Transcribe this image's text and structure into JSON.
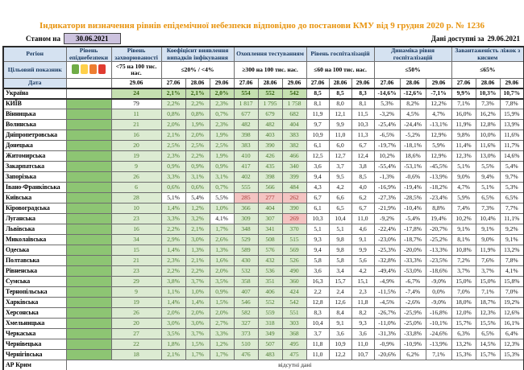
{
  "header": {
    "title": "Індикатори визначення рівнів епідемічної небезпеки відповідно до постанови КМУ від 9 грудня 2020 р. № 1236",
    "as_of_label": "Станом на",
    "as_of_date": "30.06.2021",
    "available_label": "Дані доступні за",
    "available_date": "29.06.2021"
  },
  "colors": {
    "title_accent": "#E8940F",
    "header_fill": "#D5E2F1",
    "level_green": "#8DC573",
    "cell_green": "#DCEBD2",
    "cell_green_bold": "#C5E0B0",
    "cell_pink": "#F4C4C2",
    "green_text": "#48772C",
    "red_text": "#A63632",
    "asof_box_fill": "#CCC2DE"
  },
  "table": {
    "corner": {
      "row1": "Регіон",
      "row2": "Цільовий показник",
      "row3": "Дата"
    },
    "level_col": {
      "title": "Рівень епіднебезпеки",
      "legend_colors": [
        "#6FAC46",
        "#FFD04A",
        "#ED7D31",
        "#E03C31"
      ],
      "legend_names": [
        "green-level-square",
        "yellow-level-square",
        "orange-level-square",
        "red-level-square"
      ]
    },
    "groups": [
      {
        "key": "sick",
        "cols": 1,
        "shaded": true,
        "title": "Рівень захворюваності",
        "target": "<75 на 100 тис. нас.",
        "dates": [
          "29.06"
        ]
      },
      {
        "key": "coef",
        "cols": 3,
        "shaded": true,
        "title": "Коефіцієнт виявлення випадків інфікування",
        "target": "≤20% / <4%",
        "dates": [
          "27.06",
          "28.06",
          "29.06"
        ]
      },
      {
        "key": "test",
        "cols": 3,
        "shaded": true,
        "title": "Охоплення тестуванням",
        "target": "≥300 на 100 тис. нас.",
        "dates": [
          "27.06",
          "28.06",
          "29.06"
        ]
      },
      {
        "key": "hosp",
        "cols": 3,
        "shaded": false,
        "title": "Рівень госпіталізацій",
        "target": "≤60 на 100 тис. нас.",
        "dates": [
          "27.06",
          "28.06",
          "29.06"
        ]
      },
      {
        "key": "dyn",
        "cols": 3,
        "shaded": false,
        "title": "Динаміка рівня госпіталізацій",
        "target": "≤50%",
        "dates": [
          "27.06",
          "28.06",
          "29.06"
        ]
      },
      {
        "key": "beds",
        "cols": 3,
        "shaded": false,
        "title": "Завантаженість ліжок з киснем",
        "target": "≤65%",
        "dates": [
          "27.06",
          "28.06",
          "29.06"
        ]
      }
    ],
    "no_data_text": "відсутні дані",
    "rows": [
      {
        "name": "Україна",
        "style": "ukraine",
        "level": "",
        "sick": [
          "24"
        ],
        "coef": [
          "2,1%",
          "2,1%",
          "2,0%"
        ],
        "test": [
          "554",
          "552",
          "542"
        ],
        "hosp": [
          "8,5",
          "8,5",
          "8,3"
        ],
        "dyn": [
          "-14,6%",
          "-12,6%",
          "-7,1%"
        ],
        "beds": [
          "9,9%",
          "10,3%",
          "10,7%"
        ]
      },
      {
        "name": "КИЇВ",
        "level": "green",
        "sick": [
          "w:79"
        ],
        "coef": [
          "2,2%",
          "2,2%",
          "2,3%"
        ],
        "test": [
          "1 817",
          "1 795",
          "1 758"
        ],
        "hosp": [
          "8,1",
          "8,0",
          "8,1"
        ],
        "dyn": [
          "5,3%",
          "8,2%",
          "12,2%"
        ],
        "beds": [
          "7,1%",
          "7,3%",
          "7,8%"
        ]
      },
      {
        "name": "Вінницька",
        "level": "green",
        "sick": [
          "11"
        ],
        "coef": [
          "0,8%",
          "0,8%",
          "0,7%"
        ],
        "test": [
          "677",
          "679",
          "682"
        ],
        "hosp": [
          "11,9",
          "12,1",
          "11,5"
        ],
        "dyn": [
          "-3,2%",
          "4,5%",
          "4,7%"
        ],
        "beds": [
          "16,0%",
          "16,2%",
          "15,9%"
        ]
      },
      {
        "name": "Волинська",
        "level": "green",
        "sick": [
          "21"
        ],
        "coef": [
          "2,0%",
          "1,9%",
          "2,3%"
        ],
        "test": [
          "482",
          "482",
          "404"
        ],
        "hosp": [
          "9,7",
          "9,9",
          "10,3"
        ],
        "dyn": [
          "-25,4%",
          "-24,4%",
          "-13,1%"
        ],
        "beds": [
          "11,9%",
          "12,8%",
          "13,9%"
        ]
      },
      {
        "name": "Дніпропетровська",
        "level": "green",
        "sick": [
          "16"
        ],
        "coef": [
          "2,1%",
          "2,0%",
          "1,9%"
        ],
        "test": [
          "398",
          "403",
          "383"
        ],
        "hosp": [
          "10,9",
          "11,0",
          "11,3"
        ],
        "dyn": [
          "-6,5%",
          "-5,2%",
          "12,9%"
        ],
        "beds": [
          "9,8%",
          "10,0%",
          "11,6%"
        ]
      },
      {
        "name": "Донецька",
        "level": "green",
        "sick": [
          "20"
        ],
        "coef": [
          "2,5%",
          "2,5%",
          "2,5%"
        ],
        "test": [
          "383",
          "390",
          "382"
        ],
        "hosp": [
          "6,1",
          "6,0",
          "6,7"
        ],
        "dyn": [
          "-19,7%",
          "-18,1%",
          "5,9%"
        ],
        "beds": [
          "11,4%",
          "11,6%",
          "11,7%"
        ]
      },
      {
        "name": "Житомирська",
        "level": "green",
        "sick": [
          "19"
        ],
        "coef": [
          "2,3%",
          "2,2%",
          "1,9%"
        ],
        "test": [
          "410",
          "426",
          "466"
        ],
        "hosp": [
          "12,5",
          "12,7",
          "12,4"
        ],
        "dyn": [
          "10,2%",
          "18,6%",
          "12,9%"
        ],
        "beds": [
          "12,3%",
          "13,0%",
          "14,6%"
        ]
      },
      {
        "name": "Закарпатська",
        "level": "green",
        "sick": [
          "9"
        ],
        "coef": [
          "0,9%",
          "0,9%",
          "0,9%"
        ],
        "test": [
          "417",
          "435",
          "340"
        ],
        "hosp": [
          "3,6",
          "3,7",
          "3,8"
        ],
        "dyn": [
          "-55,4%",
          "-53,1%",
          "-45,5%"
        ],
        "beds": [
          "5,1%",
          "5,5%",
          "5,4%"
        ]
      },
      {
        "name": "Запорізька",
        "level": "green",
        "sick": [
          "26"
        ],
        "coef": [
          "3,3%",
          "3,1%",
          "3,1%"
        ],
        "test": [
          "402",
          "398",
          "399"
        ],
        "hosp": [
          "9,4",
          "9,5",
          "8,5"
        ],
        "dyn": [
          "-1,3%",
          "-0,6%",
          "-13,9%"
        ],
        "beds": [
          "9,0%",
          "9,4%",
          "9,7%"
        ]
      },
      {
        "name": "Івано-Франківська",
        "level": "green",
        "sick": [
          "6"
        ],
        "coef": [
          "0,6%",
          "0,6%",
          "0,7%"
        ],
        "test": [
          "555",
          "566",
          "484"
        ],
        "hosp": [
          "4,3",
          "4,2",
          "4,0"
        ],
        "dyn": [
          "-16,9%",
          "-19,4%",
          "-18,2%"
        ],
        "beds": [
          "4,7%",
          "5,1%",
          "5,3%"
        ]
      },
      {
        "name": "Київська",
        "level": "green",
        "sick": [
          "28"
        ],
        "coef": [
          "w:5,1%",
          "w:5,4%",
          "w:5,5%"
        ],
        "test": [
          "p:285",
          "p:277",
          "p:262"
        ],
        "hosp": [
          "6,7",
          "6,6",
          "6,2"
        ],
        "dyn": [
          "-27,3%",
          "-28,5%",
          "-23,4%"
        ],
        "beds": [
          "5,9%",
          "6,5%",
          "6,5%"
        ]
      },
      {
        "name": "Кіровоградська",
        "level": "green",
        "sick": [
          "10"
        ],
        "coef": [
          "1,4%",
          "1,2%",
          "1,0%"
        ],
        "test": [
          "366",
          "404",
          "390"
        ],
        "hosp": [
          "6,1",
          "6,5",
          "6,7"
        ],
        "dyn": [
          "-21,9%",
          "-10,4%",
          "8,8%"
        ],
        "beds": [
          "7,4%",
          "7,3%",
          "7,7%"
        ]
      },
      {
        "name": "Луганська",
        "level": "green",
        "sick": [
          "23"
        ],
        "coef": [
          "3,3%",
          "3,2%",
          "w:4,1%"
        ],
        "test": [
          "309",
          "307",
          "p:269"
        ],
        "hosp": [
          "10,3",
          "10,4",
          "11,0"
        ],
        "dyn": [
          "-9,2%",
          "-5,4%",
          "19,4%"
        ],
        "beds": [
          "10,2%",
          "10,4%",
          "11,1%"
        ]
      },
      {
        "name": "Львівська",
        "level": "green",
        "sick": [
          "16"
        ],
        "coef": [
          "2,2%",
          "2,1%",
          "1,7%"
        ],
        "test": [
          "348",
          "341",
          "370"
        ],
        "hosp": [
          "5,1",
          "5,1",
          "4,6"
        ],
        "dyn": [
          "-22,4%",
          "-17,8%",
          "-20,7%"
        ],
        "beds": [
          "9,1%",
          "9,1%",
          "9,2%"
        ]
      },
      {
        "name": "Миколаївська",
        "level": "green",
        "sick": [
          "34"
        ],
        "coef": [
          "2,9%",
          "3,0%",
          "2,6%"
        ],
        "test": [
          "529",
          "508",
          "515"
        ],
        "hosp": [
          "9,3",
          "9,8",
          "9,1"
        ],
        "dyn": [
          "-23,0%",
          "-18,7%",
          "-25,2%"
        ],
        "beds": [
          "8,1%",
          "9,0%",
          "9,1%"
        ]
      },
      {
        "name": "Одеська",
        "level": "green",
        "sick": [
          "15"
        ],
        "coef": [
          "1,4%",
          "1,3%",
          "1,3%"
        ],
        "test": [
          "589",
          "576",
          "569"
        ],
        "hosp": [
          "9,4",
          "9,8",
          "9,9"
        ],
        "dyn": [
          "-25,3%",
          "-20,0%",
          "-13,3%"
        ],
        "beds": [
          "10,8%",
          "11,9%",
          "13,2%"
        ]
      },
      {
        "name": "Полтавська",
        "level": "green",
        "sick": [
          "21"
        ],
        "coef": [
          "2,3%",
          "2,1%",
          "1,6%"
        ],
        "test": [
          "430",
          "432",
          "526"
        ],
        "hosp": [
          "5,8",
          "5,8",
          "5,6"
        ],
        "dyn": [
          "-32,8%",
          "-33,3%",
          "-23,5%"
        ],
        "beds": [
          "7,2%",
          "7,6%",
          "7,8%"
        ]
      },
      {
        "name": "Рівненська",
        "level": "green",
        "sick": [
          "23"
        ],
        "coef": [
          "2,2%",
          "2,2%",
          "2,0%"
        ],
        "test": [
          "532",
          "536",
          "490"
        ],
        "hosp": [
          "3,6",
          "3,4",
          "4,2"
        ],
        "dyn": [
          "-49,4%",
          "-53,0%",
          "-18,6%"
        ],
        "beds": [
          "3,7%",
          "3,7%",
          "4,1%"
        ]
      },
      {
        "name": "Сумська",
        "level": "green",
        "sick": [
          "29"
        ],
        "coef": [
          "3,8%",
          "3,7%",
          "3,5%"
        ],
        "test": [
          "358",
          "351",
          "360"
        ],
        "hosp": [
          "16,3",
          "15,7",
          "15,1"
        ],
        "dyn": [
          "-4,9%",
          "-6,7%",
          "-9,0%"
        ],
        "beds": [
          "15,0%",
          "15,0%",
          "15,8%"
        ]
      },
      {
        "name": "Тернопільська",
        "level": "green",
        "sick": [
          "9"
        ],
        "coef": [
          "1,1%",
          "1,0%",
          "0,9%"
        ],
        "test": [
          "407",
          "406",
          "424"
        ],
        "hosp": [
          "2,2",
          "2,4",
          "2,3"
        ],
        "dyn": [
          "-11,5%",
          "-7,4%",
          "0,0%"
        ],
        "beds": [
          "7,0%",
          "7,1%",
          "7,0%"
        ]
      },
      {
        "name": "Харківська",
        "level": "green",
        "sick": [
          "19"
        ],
        "coef": [
          "1,4%",
          "1,4%",
          "1,5%"
        ],
        "test": [
          "546",
          "552",
          "542"
        ],
        "hosp": [
          "12,8",
          "12,6",
          "11,8"
        ],
        "dyn": [
          "-4,5%",
          "-2,6%",
          "-9,0%"
        ],
        "beds": [
          "18,0%",
          "18,7%",
          "19,2%"
        ]
      },
      {
        "name": "Херсонська",
        "level": "green",
        "sick": [
          "26"
        ],
        "coef": [
          "2,0%",
          "2,0%",
          "2,0%"
        ],
        "test": [
          "582",
          "559",
          "551"
        ],
        "hosp": [
          "8,3",
          "8,4",
          "8,2"
        ],
        "dyn": [
          "-26,7%",
          "-25,9%",
          "-16,8%"
        ],
        "beds": [
          "12,0%",
          "12,3%",
          "12,6%"
        ]
      },
      {
        "name": "Хмельницька",
        "level": "green",
        "sick": [
          "20"
        ],
        "coef": [
          "3,0%",
          "3,0%",
          "2,7%"
        ],
        "test": [
          "327",
          "318",
          "303"
        ],
        "hosp": [
          "10,4",
          "9,1",
          "9,3"
        ],
        "dyn": [
          "-11,0%",
          "-25,0%",
          "-10,1%"
        ],
        "beds": [
          "15,7%",
          "15,5%",
          "16,1%"
        ]
      },
      {
        "name": "Черкаська",
        "level": "green",
        "sick": [
          "27"
        ],
        "coef": [
          "3,5%",
          "3,7%",
          "3,3%"
        ],
        "test": [
          "373",
          "349",
          "368"
        ],
        "hosp": [
          "3,7",
          "3,6",
          "3,6"
        ],
        "dyn": [
          "-31,3%",
          "-33,8%",
          "-24,6%"
        ],
        "beds": [
          "6,3%",
          "6,5%",
          "6,4%"
        ]
      },
      {
        "name": "Чернівецька",
        "level": "green",
        "sick": [
          "22"
        ],
        "coef": [
          "1,8%",
          "1,5%",
          "1,2%"
        ],
        "test": [
          "510",
          "507",
          "495"
        ],
        "hosp": [
          "11,8",
          "10,9",
          "11,0"
        ],
        "dyn": [
          "-0,9%",
          "-10,9%",
          "-13,9%"
        ],
        "beds": [
          "13,2%",
          "14,5%",
          "12,3%"
        ]
      },
      {
        "name": "Чернігівська",
        "level": "green",
        "sick": [
          "18"
        ],
        "coef": [
          "2,1%",
          "1,7%",
          "1,7%"
        ],
        "test": [
          "476",
          "483",
          "475"
        ],
        "hosp": [
          "11,0",
          "12,2",
          "10,7"
        ],
        "dyn": [
          "-20,6%",
          "6,2%",
          "7,1%"
        ],
        "beds": [
          "15,3%",
          "15,7%",
          "15,3%"
        ]
      },
      {
        "name": "АР Крим",
        "no_data": true
      },
      {
        "name": "Севастополь",
        "no_data": true
      }
    ]
  }
}
